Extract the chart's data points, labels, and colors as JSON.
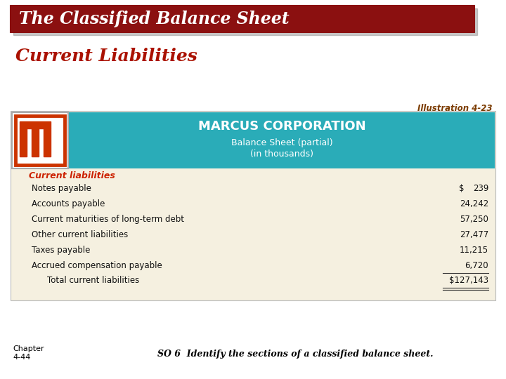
{
  "bg_color": "#FFFFFF",
  "title_banner_color": "#8B1010",
  "title_text": "The Classified Balance Sheet",
  "title_text_color": "#FFFFFF",
  "subtitle_text": "Current Liabilities",
  "subtitle_color": "#AA1100",
  "illustration_text": "Illustration 4-23",
  "illustration_color": "#7B3B00",
  "teal_header_color": "#2AACB8",
  "corp_name": "MARCUS CORPORATION",
  "corp_name_color": "#FFFFFF",
  "bs_subtitle1": "Balance Sheet (partial)",
  "bs_subtitle2": "(in thousands)",
  "bs_subtitle_color": "#FFFFFF",
  "table_bg": "#F5F0E0",
  "section_label": "Current liabilities",
  "section_label_color": "#CC2200",
  "line_items": [
    {
      "label": "Notes payable",
      "value1": "$",
      "value2": "239",
      "indent": 1
    },
    {
      "label": "Accounts payable",
      "value1": "",
      "value2": "24,242",
      "indent": 1
    },
    {
      "label": "Current maturities of long-term debt",
      "value1": "",
      "value2": "57,250",
      "indent": 1
    },
    {
      "label": "Other current liabilities",
      "value1": "",
      "value2": "27,477",
      "indent": 1
    },
    {
      "label": "Taxes payable",
      "value1": "",
      "value2": "11,215",
      "indent": 1
    },
    {
      "label": "Accrued compensation payable",
      "value1": "",
      "value2": "6,720",
      "indent": 1
    }
  ],
  "total_label": "Total current liabilities",
  "total_value": "$127,143",
  "total_indent": 2,
  "footer_left1": "Chapter",
  "footer_left2": "4-44",
  "footer_right": "SO 6  Identify the sections of a classified balance sheet.",
  "footer_color": "#000000",
  "logo_inner_color": "#CC3300",
  "shadow_color": "#888888"
}
